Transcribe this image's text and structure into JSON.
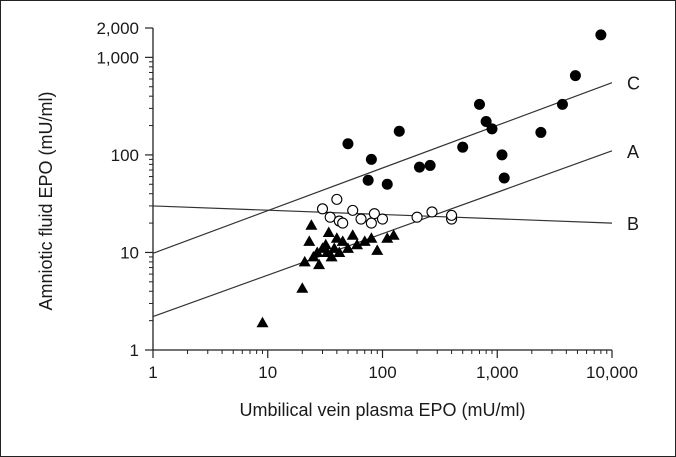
{
  "chart_data": {
    "type": "scatter",
    "xscale": "log",
    "yscale": "log",
    "xlim": [
      1,
      10000
    ],
    "ylim": [
      1,
      2000
    ],
    "xlabel": "Umbilical vein plasma EPO (mU/ml)",
    "ylabel": "Amniotic fluid EPO (mU/ml)",
    "x_ticks": [
      {
        "value": 1,
        "label": "1"
      },
      {
        "value": 10,
        "label": "10"
      },
      {
        "value": 100,
        "label": "100"
      },
      {
        "value": 1000,
        "label": "1,000"
      },
      {
        "value": 10000,
        "label": "10,000"
      }
    ],
    "y_ticks": [
      {
        "value": 1,
        "label": "1"
      },
      {
        "value": 10,
        "label": "10"
      },
      {
        "value": 100,
        "label": "100"
      },
      {
        "value": 1000,
        "label": "1,000"
      },
      {
        "value": 2000,
        "label": "2,000"
      }
    ],
    "series": [
      {
        "marker": "filled-triangle",
        "points": [
          [
            9,
            1.9
          ],
          [
            20,
            4.3
          ],
          [
            21,
            8
          ],
          [
            23,
            13
          ],
          [
            24,
            19
          ],
          [
            25,
            9
          ],
          [
            27,
            10
          ],
          [
            28,
            7.5
          ],
          [
            30,
            11
          ],
          [
            32,
            12
          ],
          [
            33,
            10
          ],
          [
            34,
            16
          ],
          [
            36,
            9
          ],
          [
            38,
            11
          ],
          [
            40,
            14
          ],
          [
            42,
            10
          ],
          [
            45,
            13
          ],
          [
            50,
            11
          ],
          [
            55,
            15
          ],
          [
            60,
            12
          ],
          [
            70,
            13
          ],
          [
            80,
            14
          ],
          [
            90,
            10.5
          ],
          [
            110,
            14
          ],
          [
            125,
            15
          ]
        ]
      },
      {
        "marker": "open-circle",
        "points": [
          [
            30,
            28
          ],
          [
            35,
            23
          ],
          [
            40,
            35
          ],
          [
            42,
            21
          ],
          [
            45,
            20
          ],
          [
            55,
            27
          ],
          [
            65,
            22
          ],
          [
            80,
            20
          ],
          [
            85,
            25
          ],
          [
            100,
            22
          ],
          [
            200,
            23
          ],
          [
            270,
            26
          ],
          [
            400,
            22
          ],
          [
            400,
            24
          ]
        ]
      },
      {
        "marker": "filled-circle",
        "points": [
          [
            50,
            130
          ],
          [
            75,
            55
          ],
          [
            80,
            90
          ],
          [
            110,
            50
          ],
          [
            140,
            175
          ],
          [
            210,
            75
          ],
          [
            260,
            78
          ],
          [
            500,
            120
          ],
          [
            700,
            330
          ],
          [
            800,
            220
          ],
          [
            900,
            185
          ],
          [
            1100,
            100
          ],
          [
            1150,
            58
          ],
          [
            2400,
            170
          ],
          [
            3700,
            330
          ],
          [
            4800,
            650
          ],
          [
            8000,
            1700
          ]
        ]
      }
    ],
    "lines": [
      {
        "name": "C",
        "from": [
          1,
          9.8
        ],
        "to": [
          10000,
          550
        ]
      },
      {
        "name": "A",
        "from": [
          1,
          2.2
        ],
        "to": [
          10000,
          110
        ]
      },
      {
        "name": "B",
        "from": [
          1,
          30
        ],
        "to": [
          10000,
          20
        ]
      }
    ],
    "grid": false
  }
}
